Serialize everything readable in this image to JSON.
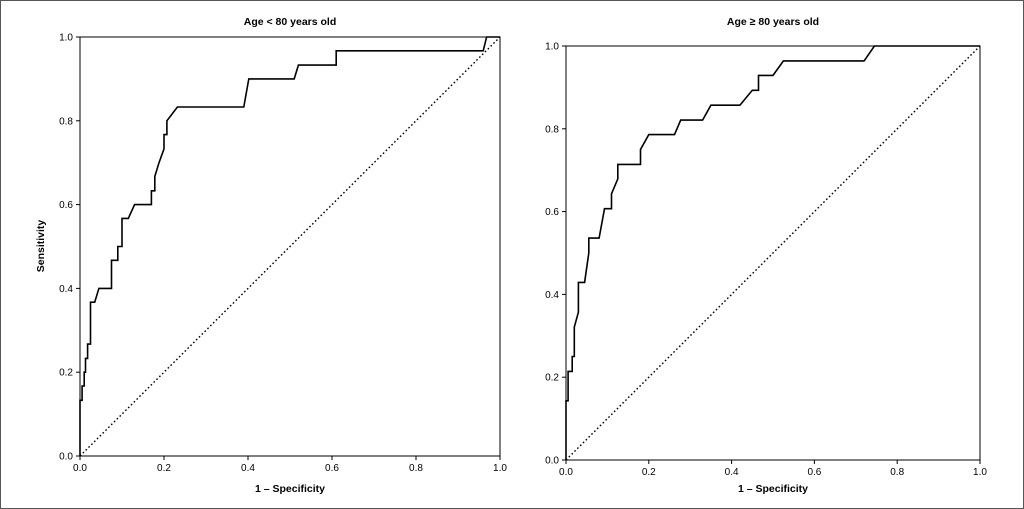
{
  "chart_data": [
    {
      "type": "line",
      "title": "Age < 80 years old",
      "xlabel": "1 – Specificity",
      "ylabel": "Sensitivity",
      "xlim": [
        0,
        1
      ],
      "ylim": [
        0,
        1
      ],
      "x_ticks": [
        0,
        0.2,
        0.4,
        0.6,
        0.8,
        1
      ],
      "x_tick_labels": [
        "0.0",
        "0.2",
        "0.4",
        "0.6",
        "0.8",
        "1.0"
      ],
      "y_ticks": [
        0,
        0.2,
        0.4,
        0.6,
        0.8,
        1
      ],
      "y_tick_labels": [
        "0.0",
        "0.2",
        "0.4",
        "0.6",
        "0.8",
        "1.0"
      ],
      "grid": false,
      "series": [
        {
          "style": "solid",
          "x": [
            0,
            0,
            0.005,
            0.005,
            0.01,
            0.01,
            0.013,
            0.013,
            0.018,
            0.018,
            0.025,
            0.025,
            0.035,
            0.045,
            0.045,
            0.075,
            0.075,
            0.09,
            0.09,
            0.1,
            0.1,
            0.115,
            0.115,
            0.13,
            0.13,
            0.17,
            0.17,
            0.178,
            0.178,
            0.188,
            0.2,
            0.2,
            0.207,
            0.207,
            0.232,
            0.39,
            0.402,
            0.51,
            0.52,
            0.61,
            0.61,
            0.96,
            0.968,
            0.968,
            1
          ],
          "y": [
            0,
            0.133,
            0.133,
            0.167,
            0.167,
            0.2,
            0.2,
            0.233,
            0.233,
            0.267,
            0.267,
            0.367,
            0.367,
            0.4,
            0.4,
            0.4,
            0.467,
            0.467,
            0.5,
            0.5,
            0.567,
            0.567,
            0.567,
            0.6,
            0.6,
            0.6,
            0.633,
            0.633,
            0.667,
            0.7,
            0.733,
            0.767,
            0.767,
            0.8,
            0.833,
            0.833,
            0.9,
            0.9,
            0.933,
            0.933,
            0.967,
            0.967,
            1,
            1,
            1
          ]
        },
        {
          "style": "dotted",
          "x": [
            0,
            1
          ],
          "y": [
            0,
            1
          ]
        }
      ]
    },
    {
      "type": "line",
      "title": "Age ≥ 80 years old",
      "xlabel": "1 – Specificity",
      "ylabel": "",
      "xlim": [
        0,
        1
      ],
      "ylim": [
        0,
        1
      ],
      "x_ticks": [
        0,
        0.2,
        0.4,
        0.6,
        0.8,
        1
      ],
      "x_tick_labels": [
        "0.0",
        "0.2",
        "0.4",
        "0.6",
        "0.8",
        "1.0"
      ],
      "y_ticks": [
        0,
        0.2,
        0.4,
        0.6,
        0.8,
        1
      ],
      "y_tick_labels": [
        "0.0",
        "0.2",
        "0.4",
        "0.6",
        "0.8",
        "1.0"
      ],
      "grid": false,
      "series": [
        {
          "style": "solid",
          "x": [
            0,
            0,
            0.005,
            0.005,
            0.015,
            0.015,
            0.02,
            0.02,
            0.03,
            0.03,
            0.045,
            0.045,
            0.055,
            0.055,
            0.08,
            0.08,
            0.093,
            0.093,
            0.11,
            0.11,
            0.125,
            0.125,
            0.135,
            0.18,
            0.18,
            0.2,
            0.2,
            0.262,
            0.277,
            0.277,
            0.33,
            0.35,
            0.35,
            0.42,
            0.45,
            0.465,
            0.465,
            0.5,
            0.525,
            0.525,
            0.72,
            0.745,
            1
          ],
          "y": [
            0,
            0.143,
            0.143,
            0.214,
            0.214,
            0.25,
            0.25,
            0.321,
            0.357,
            0.429,
            0.429,
            0.429,
            0.5,
            0.536,
            0.536,
            0.536,
            0.607,
            0.607,
            0.607,
            0.643,
            0.679,
            0.714,
            0.714,
            0.714,
            0.75,
            0.786,
            0.786,
            0.786,
            0.821,
            0.821,
            0.821,
            0.857,
            0.857,
            0.857,
            0.893,
            0.893,
            0.929,
            0.929,
            0.964,
            0.964,
            0.964,
            1,
            1
          ]
        },
        {
          "style": "dotted",
          "x": [
            0,
            1
          ],
          "y": [
            0,
            1
          ]
        }
      ]
    }
  ]
}
